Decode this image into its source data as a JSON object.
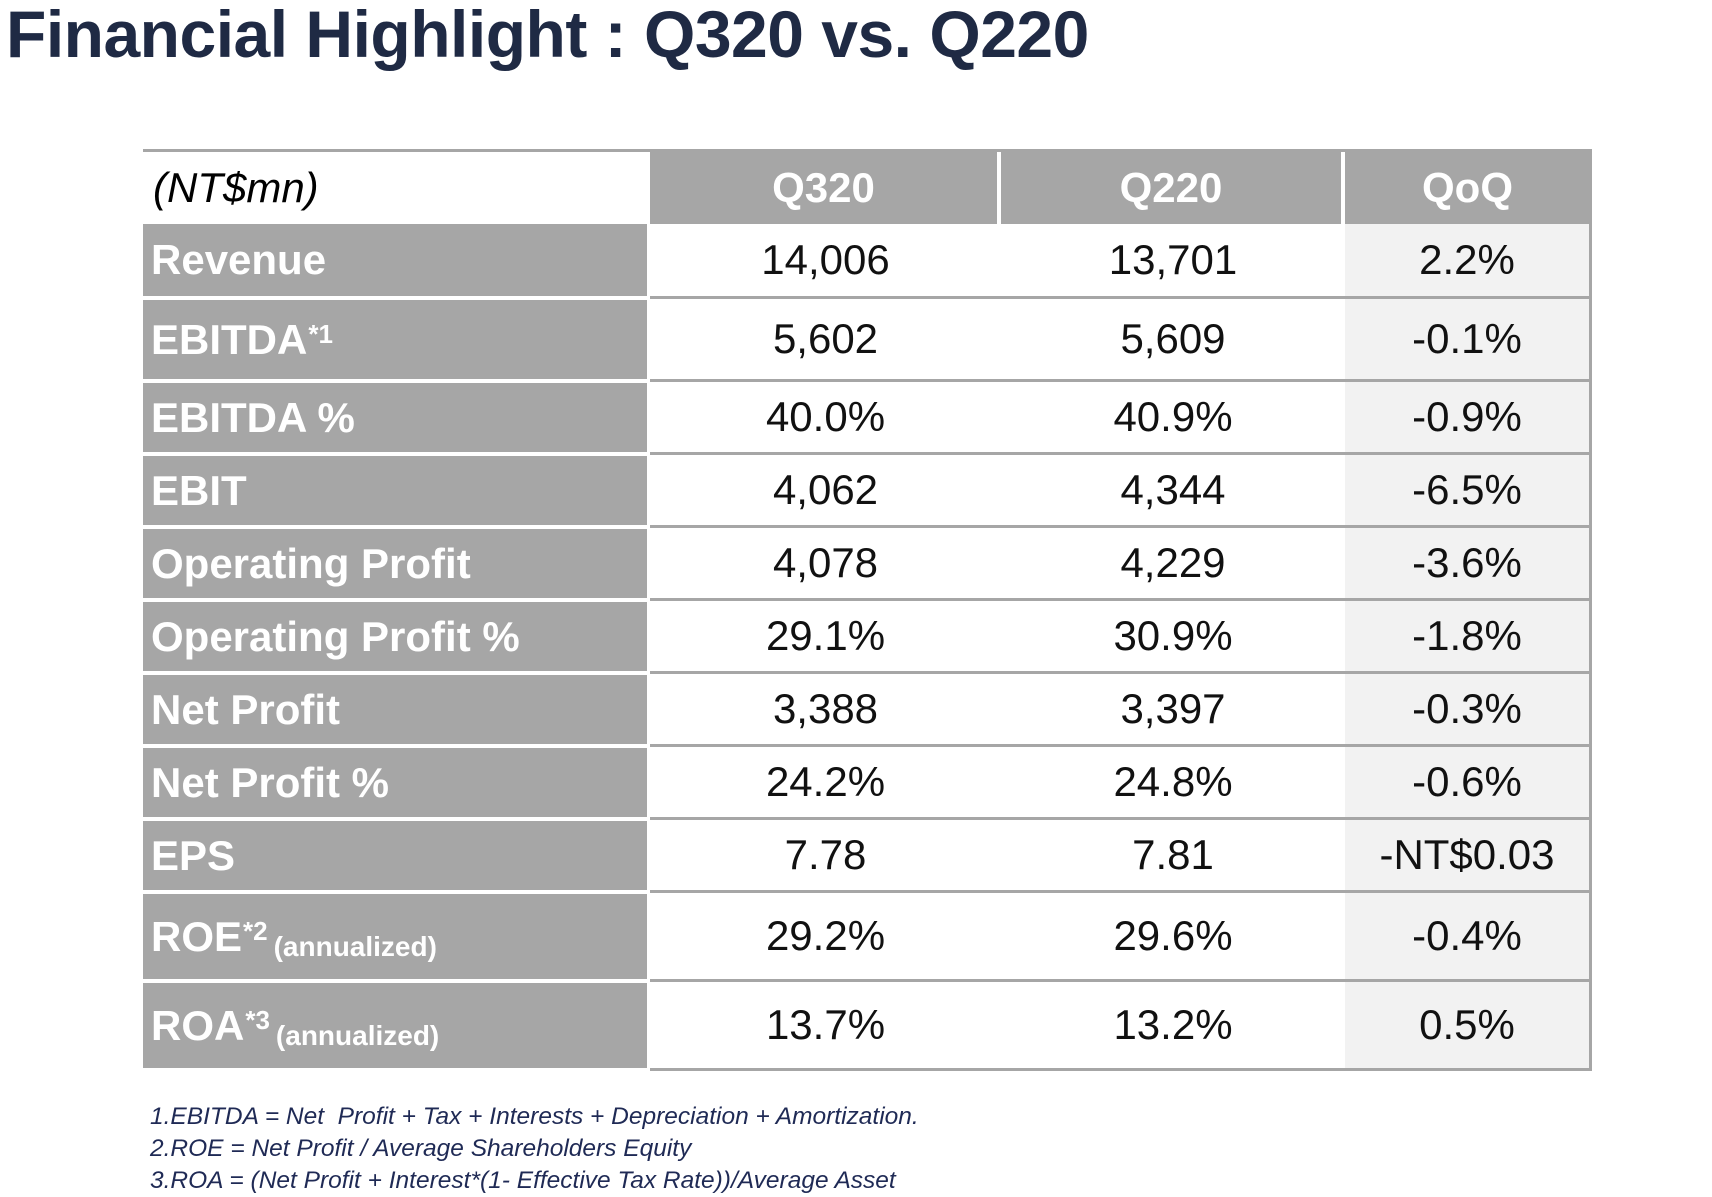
{
  "title": "Financial Highlight : Q320 vs. Q220",
  "table": {
    "unit_label": "(NT$mn)",
    "columns": [
      "Q320",
      "Q220",
      "QoQ"
    ],
    "rows": [
      {
        "label": "Revenue",
        "sup": "",
        "annot": "",
        "q320": "14,006",
        "q220": "13,701",
        "qoq": "2.2%"
      },
      {
        "label": "EBITDA",
        "sup": "*1",
        "annot": "",
        "q320": "5,602",
        "q220": "5,609",
        "qoq": "-0.1%"
      },
      {
        "label": "EBITDA %",
        "sup": "",
        "annot": "",
        "q320": "40.0%",
        "q220": "40.9%",
        "qoq": "-0.9%"
      },
      {
        "label": "EBIT",
        "sup": "",
        "annot": "",
        "q320": "4,062",
        "q220": "4,344",
        "qoq": "-6.5%"
      },
      {
        "label": "Operating Profit",
        "sup": "",
        "annot": "",
        "q320": "4,078",
        "q220": "4,229",
        "qoq": "-3.6%"
      },
      {
        "label": "Operating Profit %",
        "sup": "",
        "annot": "",
        "q320": "29.1%",
        "q220": "30.9%",
        "qoq": "-1.8%"
      },
      {
        "label": "Net Profit",
        "sup": "",
        "annot": "",
        "q320": "3,388",
        "q220": "3,397",
        "qoq": "-0.3%"
      },
      {
        "label": "Net Profit %",
        "sup": "",
        "annot": "",
        "q320": "24.2%",
        "q220": "24.8%",
        "qoq": "-0.6%"
      },
      {
        "label": "EPS",
        "sup": "",
        "annot": "",
        "q320": "7.78",
        "q220": "7.81",
        "qoq": "-NT$0.03"
      },
      {
        "label": "ROE",
        "sup": "*2",
        "annot": "(annualized)",
        "q320": "29.2%",
        "q220": "29.6%",
        "qoq": "-0.4%"
      },
      {
        "label": "ROA",
        "sup": "*3",
        "annot": "(annualized)",
        "q320": "13.7%",
        "q220": "13.2%",
        "qoq": "0.5%"
      }
    ]
  },
  "footnotes": [
    "1.EBITDA = Net  Profit + Tax + Interests + Depreciation + Amortization.",
    "2.ROE = Net Profit / Average Shareholders Equity",
    "3.ROA = (Net Profit + Interest*(1- Effective Tax Rate))/Average Asset"
  ],
  "colors": {
    "title": "#1f2a44",
    "header_fill": "#a6a6a6",
    "label_fill": "#a6a6a6",
    "qoq_fill": "#f2f2f2",
    "footnote": "#1f2a55"
  }
}
